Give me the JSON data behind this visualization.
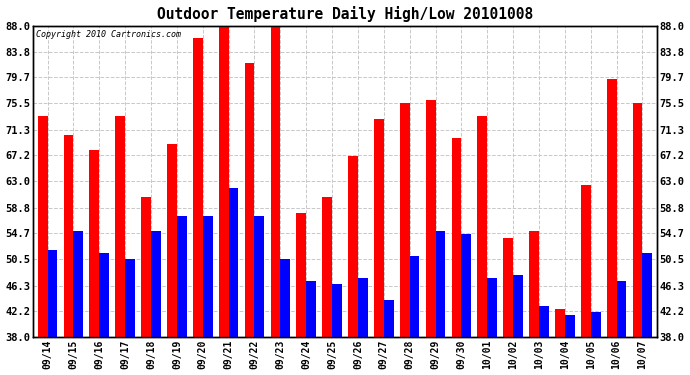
{
  "title": "Outdoor Temperature Daily High/Low 20101008",
  "copyright": "Copyright 2010 Cartronics.com",
  "dates": [
    "09/14",
    "09/15",
    "09/16",
    "09/17",
    "09/18",
    "09/19",
    "09/20",
    "09/21",
    "09/22",
    "09/23",
    "09/24",
    "09/25",
    "09/26",
    "09/27",
    "09/28",
    "09/29",
    "09/30",
    "10/01",
    "10/02",
    "10/03",
    "10/04",
    "10/05",
    "10/06",
    "10/07"
  ],
  "highs": [
    73.5,
    70.5,
    68.0,
    73.5,
    60.5,
    69.0,
    86.0,
    88.5,
    82.0,
    89.0,
    58.0,
    60.5,
    67.0,
    73.0,
    75.5,
    76.0,
    70.0,
    73.5,
    54.0,
    55.0,
    42.5,
    62.5,
    79.5,
    75.5
  ],
  "lows": [
    52.0,
    55.0,
    51.5,
    50.5,
    55.0,
    57.5,
    57.5,
    62.0,
    57.5,
    50.5,
    47.0,
    46.5,
    47.5,
    44.0,
    51.0,
    55.0,
    54.5,
    47.5,
    48.0,
    43.0,
    41.5,
    42.0,
    47.0,
    51.5
  ],
  "high_color": "#ff0000",
  "low_color": "#0000ff",
  "bg_color": "#ffffff",
  "grid_color": "#c8c8c8",
  "ymin": 38.0,
  "ymax": 88.0,
  "yticks": [
    38.0,
    42.2,
    46.3,
    50.5,
    54.7,
    58.8,
    63.0,
    67.2,
    71.3,
    75.5,
    79.7,
    83.8,
    88.0
  ]
}
